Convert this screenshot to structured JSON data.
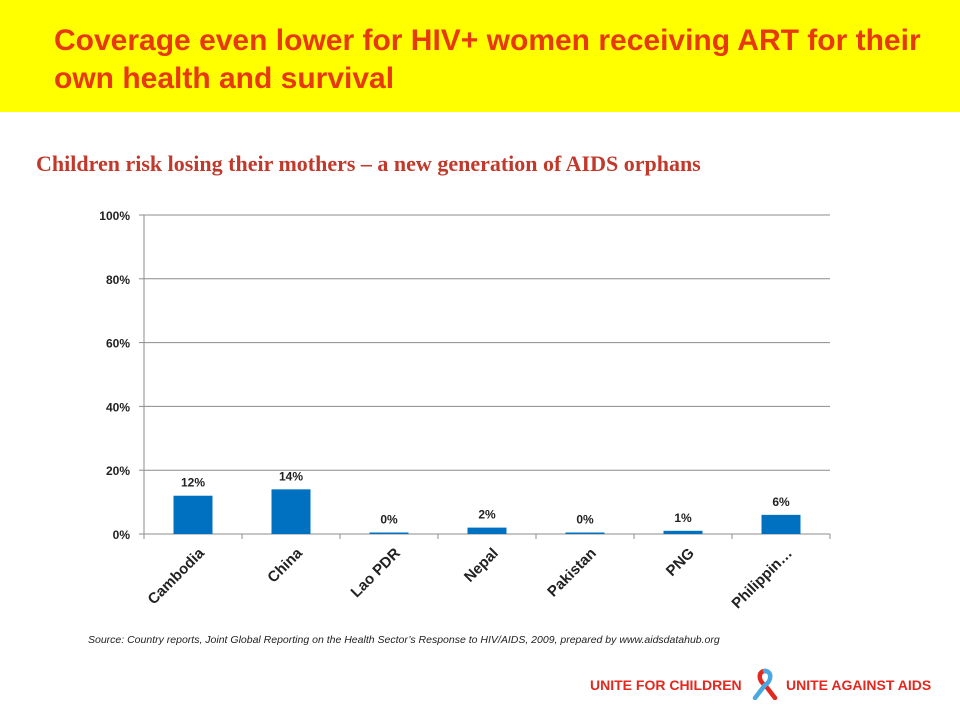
{
  "slide": {
    "title": "Coverage even lower for HIV+ women receiving ART for their own health and survival",
    "subtitle": "Children risk losing their mothers – a new generation of AIDS orphans",
    "source": "Source: Country reports, Joint Global Reporting on the Health Sector’s Response to HIV/AIDS, 2009, prepared by www.aidsdatahub.org",
    "logo": {
      "left_text": "UNITE FOR CHILDREN",
      "right_text": "UNITE AGAINST AIDS",
      "ribbon_icon": "aids-ribbon-icon"
    },
    "colors": {
      "banner": "#ffff00",
      "title": "#e8380d",
      "subtitle": "#c0392b",
      "bar": "#0070c0",
      "logo_red": "#e3281f",
      "logo_blue": "#4aa8e0"
    }
  },
  "chart_data": {
    "type": "bar",
    "categories": [
      "Cambodia",
      "China",
      "Lao PDR",
      "Nepal",
      "Pakistan",
      "PNG",
      "Philippin…"
    ],
    "values": [
      12,
      14,
      0,
      2,
      0,
      1,
      6
    ],
    "data_labels": [
      "12%",
      "14%",
      "0%",
      "2%",
      "0%",
      "1%",
      "6%"
    ],
    "ylim": [
      0,
      100
    ],
    "yticks": [
      0,
      20,
      40,
      60,
      80,
      100
    ],
    "ytick_labels": [
      "0%",
      "20%",
      "40%",
      "60%",
      "80%",
      "100%"
    ],
    "xlabel": "",
    "ylabel": "",
    "grid": true,
    "legend": "none"
  }
}
